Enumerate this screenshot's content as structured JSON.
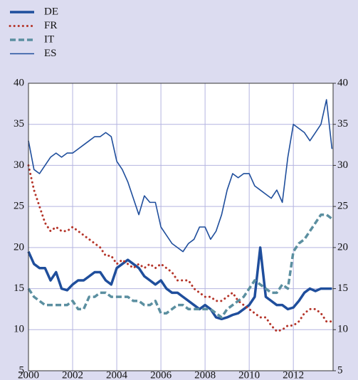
{
  "chart_data": {
    "type": "line",
    "x": [
      2000,
      2000.25,
      2000.5,
      2000.75,
      2001,
      2001.25,
      2001.5,
      2001.75,
      2002,
      2002.25,
      2002.5,
      2002.75,
      2003,
      2003.25,
      2003.5,
      2003.75,
      2004,
      2004.25,
      2004.5,
      2004.75,
      2005,
      2005.25,
      2005.5,
      2005.75,
      2006,
      2006.25,
      2006.5,
      2006.75,
      2007,
      2007.25,
      2007.5,
      2007.75,
      2008,
      2008.25,
      2008.5,
      2008.75,
      2009,
      2009.25,
      2009.5,
      2009.75,
      2010,
      2010.25,
      2010.5,
      2010.75,
      2011,
      2011.25,
      2011.5,
      2011.75,
      2012,
      2012.25,
      2012.5,
      2012.75,
      2013,
      2013.25,
      2013.5,
      2013.75
    ],
    "series": [
      {
        "name": "DE",
        "color": "#1f4e9c",
        "style": "solid-thick",
        "values": [
          19.5,
          18,
          17.5,
          17.5,
          16,
          17,
          15,
          14.8,
          15.5,
          16,
          16,
          16.5,
          17,
          17,
          16,
          15.5,
          17.5,
          18,
          18.5,
          18,
          17.5,
          16.5,
          16,
          15.5,
          16,
          15,
          14.5,
          14.5,
          14,
          13.5,
          13,
          12.5,
          13,
          12.5,
          11.5,
          11.3,
          11.5,
          11.8,
          12,
          12.5,
          13,
          14,
          20,
          14,
          13.5,
          13,
          13,
          12.5,
          12.7,
          13.5,
          14.5,
          15,
          14.7,
          15,
          15,
          15
        ]
      },
      {
        "name": "FR",
        "color": "#b5352a",
        "style": "dotted",
        "values": [
          30,
          27,
          25,
          23,
          22,
          22.5,
          22,
          22,
          22.5,
          22,
          21.5,
          21,
          20.5,
          20,
          19,
          19,
          18,
          18.5,
          18,
          17.5,
          18,
          17.5,
          18,
          17.5,
          18,
          17.5,
          17,
          16,
          16,
          16,
          15,
          14.5,
          14,
          14,
          13.5,
          13.5,
          14,
          14.5,
          13.5,
          13,
          12.5,
          12,
          11.5,
          11.5,
          10.5,
          9.8,
          10,
          10.5,
          10.5,
          11,
          12,
          12.5,
          12.5,
          12,
          11,
          11
        ]
      },
      {
        "name": "IT",
        "color": "#5b8fa0",
        "style": "dashed",
        "values": [
          15,
          14,
          13.5,
          13,
          13,
          13,
          13,
          13,
          13.5,
          12.5,
          12.5,
          14,
          14,
          14.5,
          14.5,
          14,
          14,
          14,
          14,
          13.5,
          13.5,
          13,
          13,
          13.5,
          12,
          12,
          12.5,
          13,
          13,
          12.5,
          12.5,
          12.5,
          12.5,
          12.5,
          12,
          11.5,
          12.5,
          13,
          13.5,
          14,
          15,
          16,
          15.5,
          15,
          14.5,
          14.5,
          15.5,
          15,
          19.5,
          20.5,
          21,
          22,
          23,
          24,
          24,
          23.5
        ]
      },
      {
        "name": "ES",
        "color": "#1f4e9c",
        "style": "solid-thin",
        "values": [
          33,
          29.5,
          29,
          30,
          31,
          31.5,
          31,
          31.5,
          31.5,
          32,
          32.5,
          33,
          33.5,
          33.5,
          34,
          33.5,
          30.5,
          29.5,
          28,
          26,
          24,
          26.3,
          25.5,
          25.5,
          22.5,
          21.5,
          20.5,
          20,
          19.5,
          20.5,
          21,
          22.5,
          22.5,
          21,
          22,
          24,
          27,
          29,
          28.5,
          29,
          29,
          27.5,
          27,
          26.5,
          26,
          27,
          25.5,
          31,
          35,
          34.5,
          34,
          33,
          34,
          35,
          38,
          32
        ]
      }
    ],
    "xlim": [
      2000,
      2013.8
    ],
    "xticks": [
      2000,
      2002,
      2004,
      2006,
      2008,
      2010,
      2012
    ],
    "ylim": [
      5,
      40
    ],
    "yticks": [
      5,
      10,
      15,
      20,
      25,
      30,
      35,
      40
    ],
    "y2lim": [
      5,
      40
    ],
    "y2ticks": [
      5,
      10,
      15,
      20,
      25,
      30,
      35,
      40
    ],
    "grid": true,
    "legend": "top-left"
  }
}
